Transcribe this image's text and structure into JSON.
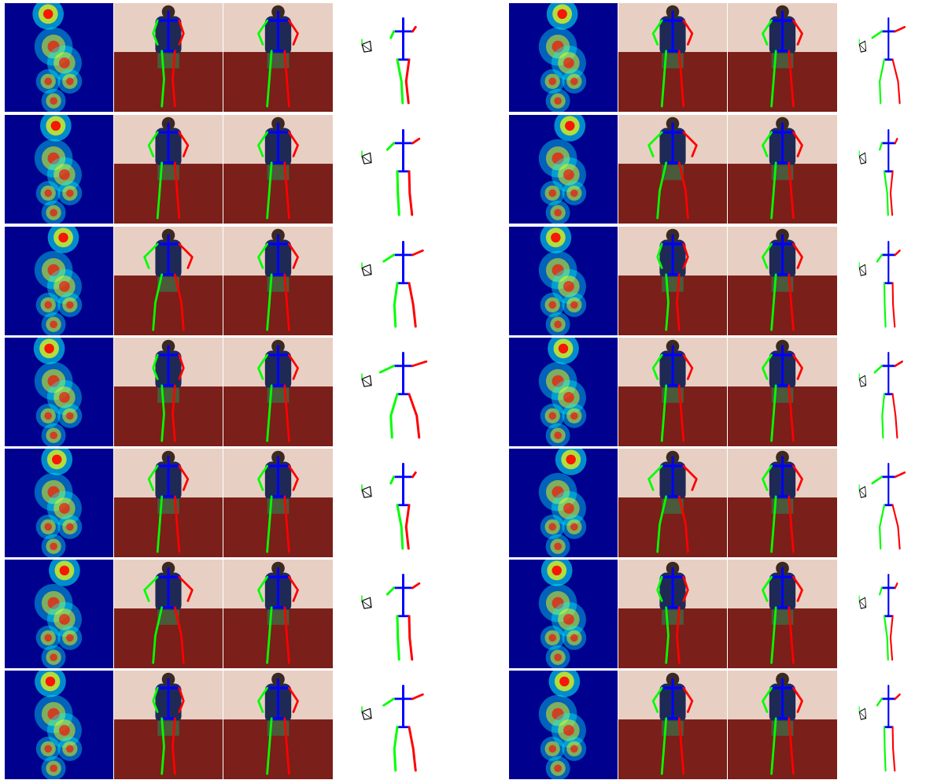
{
  "figure": {
    "description_visible_text": "",
    "layout": {
      "groups": 2,
      "rows_per_group": 7,
      "panels_per_row": [
        "heatmap",
        "prediction-overlay",
        "ground-truth-overlay",
        "3d-skeleton"
      ]
    },
    "colors": {
      "left_limb": "#ff0000",
      "right_limb": "#00ff00",
      "torso": "#0000ff",
      "heat_bg": "#00008f",
      "heat_hot": "#ff0000",
      "heat_warm": "#ffff00",
      "heat_mid": "#00ffff"
    },
    "icons": {
      "camera": "camera-frustum-icon"
    }
  }
}
